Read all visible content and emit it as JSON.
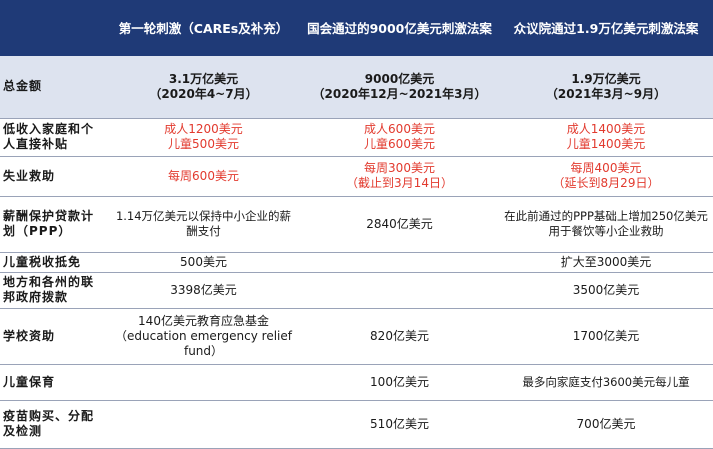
{
  "header": {
    "corner": "",
    "col1": "第一轮刺激（CAREs及补充）",
    "col2": "国会通过的9000亿美元刺激法案",
    "col3": "众议院通过1.9万亿美元刺激法案"
  },
  "rows": {
    "total": {
      "label": "总金额",
      "c1_amount": "3.1万亿美元",
      "c1_period": "（2020年4~7月）",
      "c2_amount": "9000亿美元",
      "c2_period": "（2020年12月~2021年3月）",
      "c3_amount": "1.9万亿美元",
      "c3_period": "（2021年3月~9月）"
    },
    "direct_payment": {
      "label": "低收入家庭和个人直接补贴",
      "c1_a": "成人1200美元",
      "c1_b": "儿童500美元",
      "c2_a": "成人600美元",
      "c2_b": "儿童600美元",
      "c3_a": "成人1400美元",
      "c3_b": "儿童1400美元"
    },
    "unemployment": {
      "label": "失业救助",
      "c1": "每周600美元",
      "c2_a": "每周300美元",
      "c2_b": "（截止到3月14日）",
      "c3_a": "每周400美元",
      "c3_b": "（延长到8月29日）"
    },
    "ppp": {
      "label": "薪酬保护贷款计划（PPP）",
      "c1": "1.14万亿美元以保持中小企业的薪酬支付",
      "c2": "2840亿美元",
      "c3": "在此前通过的PPP基础上增加250亿美元用于餐饮等小企业救助"
    },
    "child_tax": {
      "label": "儿童税收抵免",
      "c1": "500美元",
      "c2": "",
      "c3": "扩大至3000美元"
    },
    "state_local": {
      "label": "地方和各州的联邦政府拨款",
      "c1": "3398亿美元",
      "c2": "",
      "c3": "3500亿美元"
    },
    "school": {
      "label": "学校资助",
      "c1_a": "140亿美元教育应急基金",
      "c1_b": "（education emergency relief fund）",
      "c2": "820亿美元",
      "c3": "1700亿美元"
    },
    "childcare": {
      "label": "儿童保育",
      "c1": "",
      "c2": "100亿美元",
      "c3": "最多向家庭支付3600美元每儿童"
    },
    "vaccine": {
      "label": "疫苗购买、分配及检测",
      "c1": "",
      "c2": "510亿美元",
      "c3": "700亿美元"
    }
  },
  "colors": {
    "header_bg": "#1f3a77",
    "summary_bg": "#dde3ef",
    "highlight_red": "#e23a2e"
  }
}
